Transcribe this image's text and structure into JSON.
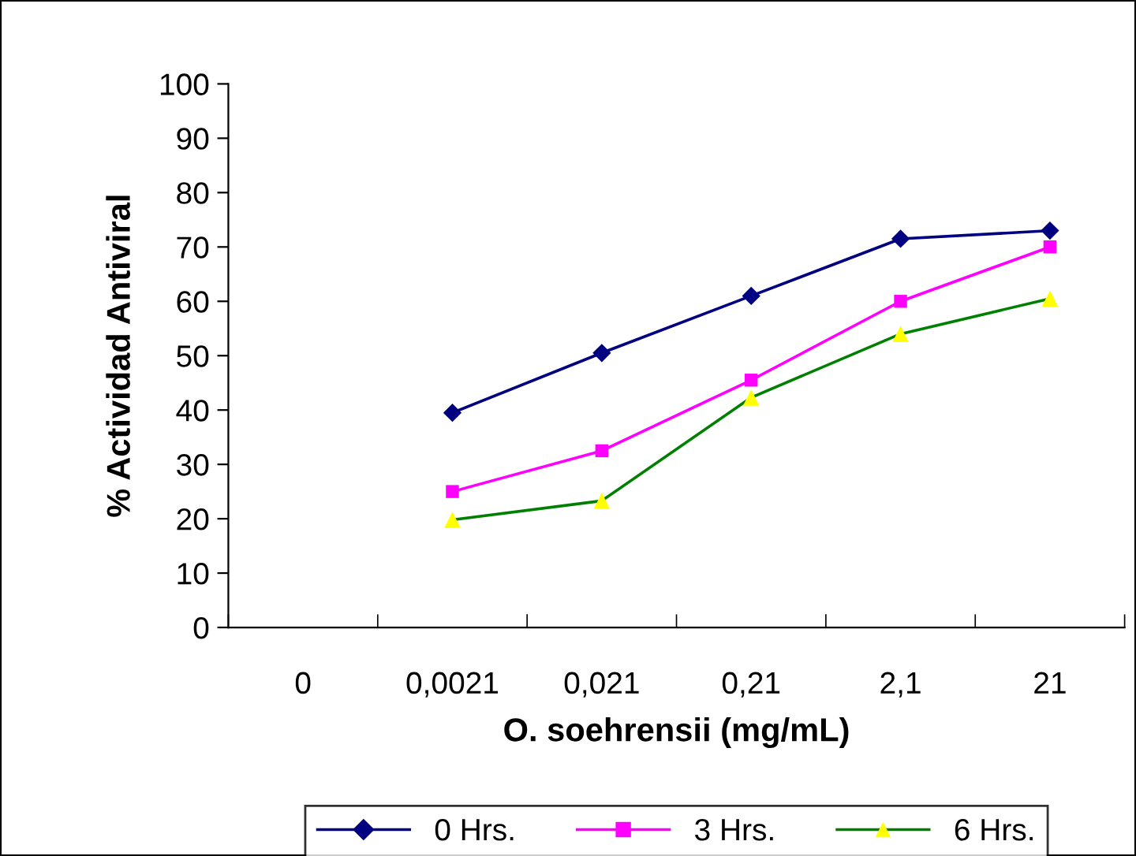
{
  "chart_data": {
    "type": "line",
    "xlabel": "O. soehrensii (mg/mL)",
    "ylabel": "% Actividad Antiviral",
    "categories": [
      "0",
      "0,0021",
      "0,021",
      "0,21",
      "2,1",
      "21"
    ],
    "ylim": [
      0,
      100
    ],
    "yticks": [
      0,
      10,
      20,
      30,
      40,
      50,
      60,
      70,
      80,
      90,
      100
    ],
    "grid": false,
    "legend": "bottom",
    "series": [
      {
        "name": "0 Hrs.",
        "color": "#000080",
        "marker": "diamond",
        "values": [
          null,
          39.5,
          50.5,
          61,
          71.5,
          73
        ]
      },
      {
        "name": "3 Hrs.",
        "color": "#ff00ff",
        "marker": "square",
        "values": [
          null,
          25,
          32.5,
          45.5,
          60,
          70
        ]
      },
      {
        "name": "6 Hrs.",
        "color": "#008000",
        "marker": "triangle",
        "colors": [
          "#ffff00",
          "#ffff00",
          "#ffff00",
          "#ffff00",
          "#ffff00",
          "#ffff00"
        ],
        "values": [
          null,
          19.8,
          23.3,
          42.3,
          54,
          60.5
        ]
      }
    ]
  }
}
